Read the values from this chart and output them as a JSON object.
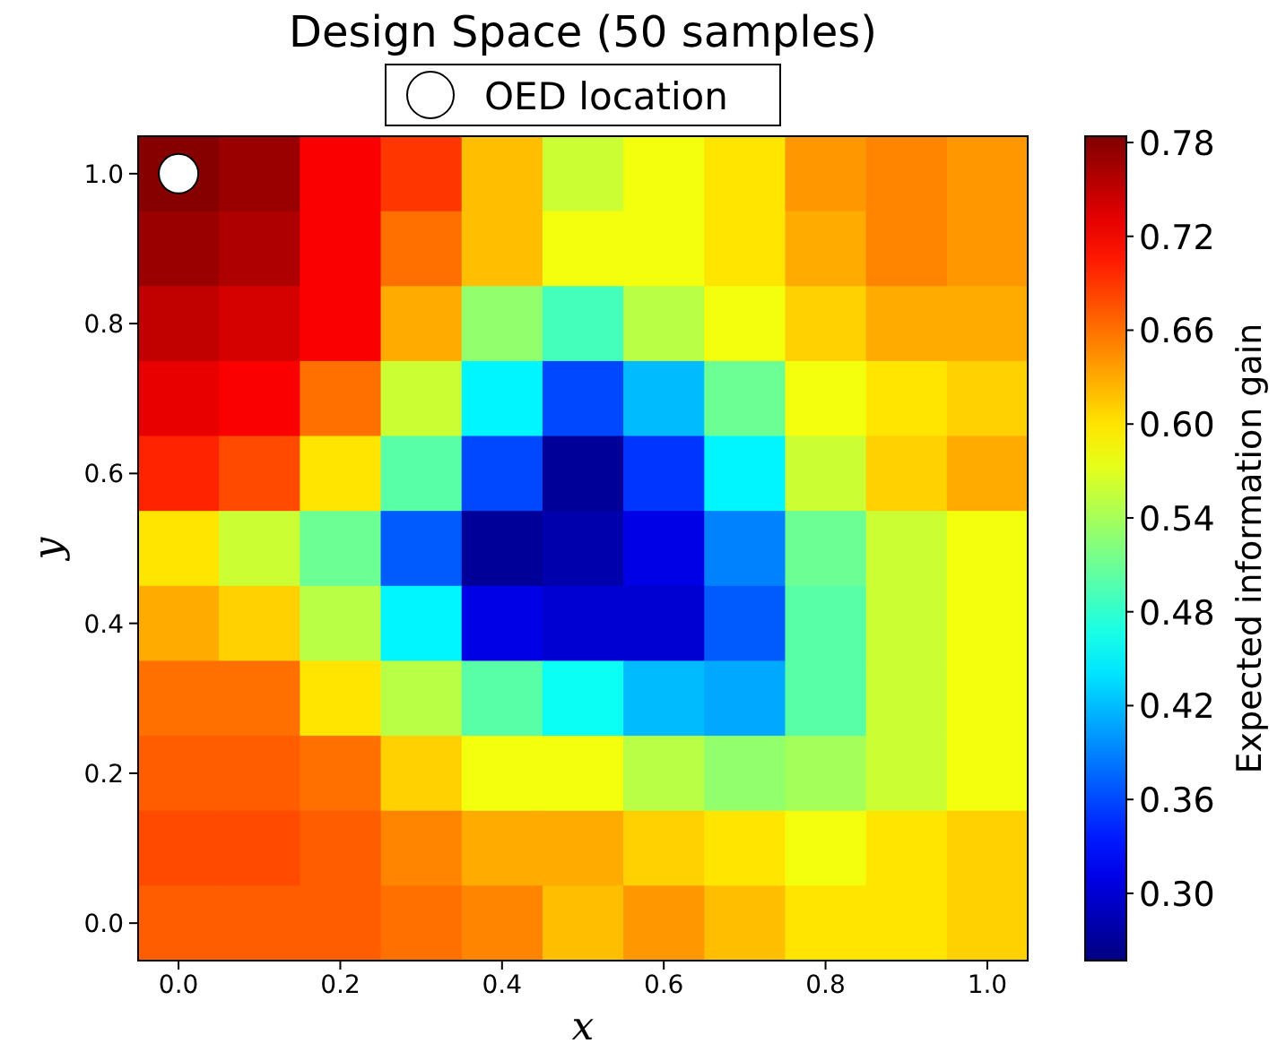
{
  "chart_data": {
    "type": "heatmap",
    "title": "Design Space (50 samples)",
    "xlabel": "x",
    "ylabel": "y",
    "clabel": "Expected information gain",
    "categories": [
      "0.0",
      null,
      "0.2",
      null,
      "0.4",
      null,
      "0.6",
      null,
      "0.8",
      null,
      "1.0"
    ],
    "y_categories": [
      "1.0",
      null,
      "0.8",
      null,
      "0.6",
      null,
      "0.4",
      null,
      "0.2",
      null,
      "0.0"
    ],
    "cells": [
      [
        0.78,
        0.77,
        0.72,
        0.69,
        0.62,
        0.56,
        0.58,
        0.6,
        0.64,
        0.65,
        0.64
      ],
      [
        0.77,
        0.76,
        0.72,
        0.66,
        0.62,
        0.58,
        0.58,
        0.6,
        0.63,
        0.65,
        0.64
      ],
      [
        0.75,
        0.74,
        0.72,
        0.63,
        0.53,
        0.49,
        0.55,
        0.58,
        0.61,
        0.63,
        0.63
      ],
      [
        0.73,
        0.72,
        0.66,
        0.56,
        0.45,
        0.36,
        0.42,
        0.51,
        0.58,
        0.6,
        0.61
      ],
      [
        0.7,
        0.68,
        0.6,
        0.5,
        0.36,
        0.27,
        0.35,
        0.45,
        0.56,
        0.61,
        0.63
      ],
      [
        0.6,
        0.56,
        0.51,
        0.37,
        0.27,
        0.28,
        0.31,
        0.39,
        0.51,
        0.56,
        0.58
      ],
      [
        0.63,
        0.61,
        0.55,
        0.45,
        0.31,
        0.3,
        0.3,
        0.37,
        0.5,
        0.56,
        0.58
      ],
      [
        0.66,
        0.66,
        0.6,
        0.55,
        0.5,
        0.46,
        0.42,
        0.41,
        0.5,
        0.56,
        0.58
      ],
      [
        0.67,
        0.67,
        0.66,
        0.61,
        0.58,
        0.58,
        0.55,
        0.53,
        0.54,
        0.56,
        0.58
      ],
      [
        0.68,
        0.68,
        0.67,
        0.65,
        0.63,
        0.63,
        0.61,
        0.6,
        0.58,
        0.6,
        0.61
      ],
      [
        0.67,
        0.67,
        0.67,
        0.66,
        0.65,
        0.62,
        0.64,
        0.62,
        0.6,
        0.6,
        0.61
      ]
    ],
    "clim": [
      0.257,
      0.784
    ],
    "cticks": [
      {
        "value": 0.3,
        "label": "0.30"
      },
      {
        "value": 0.36,
        "label": "0.36"
      },
      {
        "value": 0.42,
        "label": "0.42"
      },
      {
        "value": 0.48,
        "label": "0.48"
      },
      {
        "value": 0.54,
        "label": "0.54"
      },
      {
        "value": 0.6,
        "label": "0.60"
      },
      {
        "value": 0.66,
        "label": "0.66"
      },
      {
        "value": 0.72,
        "label": "0.72"
      },
      {
        "value": 0.78,
        "label": "0.78"
      }
    ],
    "annotations": [
      "OED location"
    ]
  }
}
